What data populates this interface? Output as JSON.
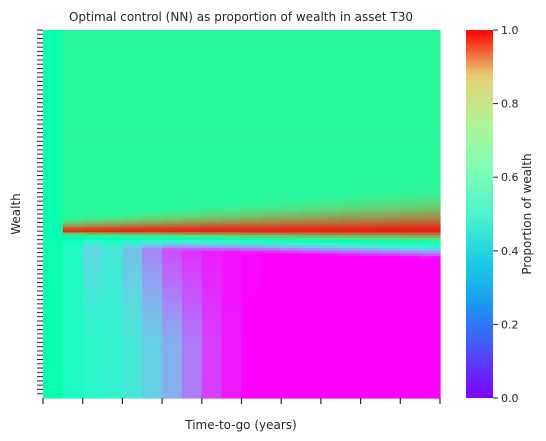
{
  "chart_data": {
    "type": "heatmap",
    "title": "Optimal control (NN) as proportion of wealth in asset T30",
    "xlabel": "Time-to-go (years)",
    "ylabel": "Wealth",
    "colorbar_label": "Proportion of wealth",
    "colormap": "rainbow",
    "colorbar_range": [
      0.0,
      1.0
    ],
    "colorbar_ticks": [
      "0.0",
      "0.2",
      "0.4",
      "0.6",
      "0.8",
      "1.0"
    ],
    "x_tick_count": 11,
    "y_tick_count": 86,
    "n_time_columns": 20,
    "upper_region_value": 0.58,
    "threshold_row_fraction_from_top": 0.545,
    "peak_value": 0.98,
    "lower_region_steady_value": 0.0,
    "first_column_value": 0.52,
    "lower_band_values_by_column": [
      0.52,
      0.44,
      0.3,
      0.36,
      0.26,
      0.16,
      0.08,
      0.05,
      0.03,
      0.02,
      0.01,
      0.0,
      0.0,
      0.0,
      0.0,
      0.0,
      0.0,
      0.0,
      0.0,
      0.0
    ],
    "lower_band_floor_values_by_column": [
      0.52,
      0.44,
      0.42,
      0.4,
      0.36,
      0.3,
      0.24,
      0.16,
      0.08,
      0.03,
      0.0,
      0.0,
      0.0,
      0.0,
      0.0,
      0.0,
      0.0,
      0.0,
      0.0,
      0.0
    ]
  }
}
